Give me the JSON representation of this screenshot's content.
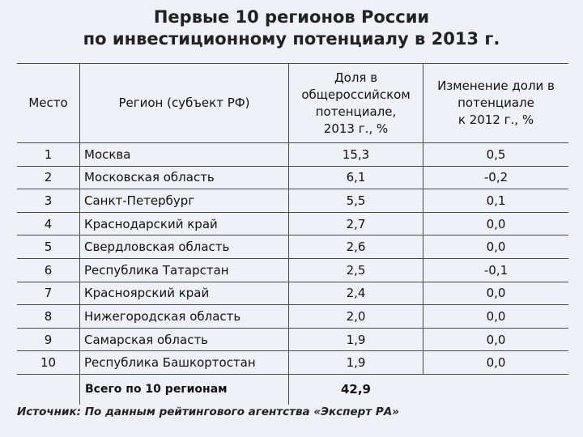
{
  "title": {
    "line1": "Первые 10 регионов России",
    "line2": "по инвестиционному потенциалу в 2013 г."
  },
  "table": {
    "headers": {
      "place": "Место",
      "region": "Регион (субъект РФ)",
      "share_l1": "Доля в",
      "share_l2": "общероссийском",
      "share_l3": "потенциале,",
      "share_l4": "2013 г., %",
      "change_l1": "Изменение доли в",
      "change_l2": "потенциале",
      "change_l3": "к 2012 г., %"
    },
    "rows": [
      {
        "place": "1",
        "region": "Москва",
        "share": "15,3",
        "change": "0,5"
      },
      {
        "place": "2",
        "region": "Московская область",
        "share": "6,1",
        "change": "-0,2"
      },
      {
        "place": "3",
        "region": "Санкт-Петербург",
        "share": "5,5",
        "change": "0,1"
      },
      {
        "place": "4",
        "region": "Краснодарский край",
        "share": "2,7",
        "change": "0,0"
      },
      {
        "place": "5",
        "region": "Свердловская область",
        "share": "2,6",
        "change": "0,0"
      },
      {
        "place": "6",
        "region": "Республика Татарстан",
        "share": "2,5",
        "change": "-0,1"
      },
      {
        "place": "7",
        "region": "Красноярский край",
        "share": "2,4",
        "change": "0,0"
      },
      {
        "place": "8",
        "region": "Нижегородская область",
        "share": "2,0",
        "change": "0,0"
      },
      {
        "place": "9",
        "region": "Самарская область",
        "share": "1,9",
        "change": "0,0"
      },
      {
        "place": "10",
        "region": "Республика Башкортостан",
        "share": "1,9",
        "change": "0,0"
      }
    ],
    "total": {
      "label": "Всего по 10 регионам",
      "share": "42,9"
    }
  },
  "source": "Источник: По данным рейтингового агентства «Эксперт РА»"
}
